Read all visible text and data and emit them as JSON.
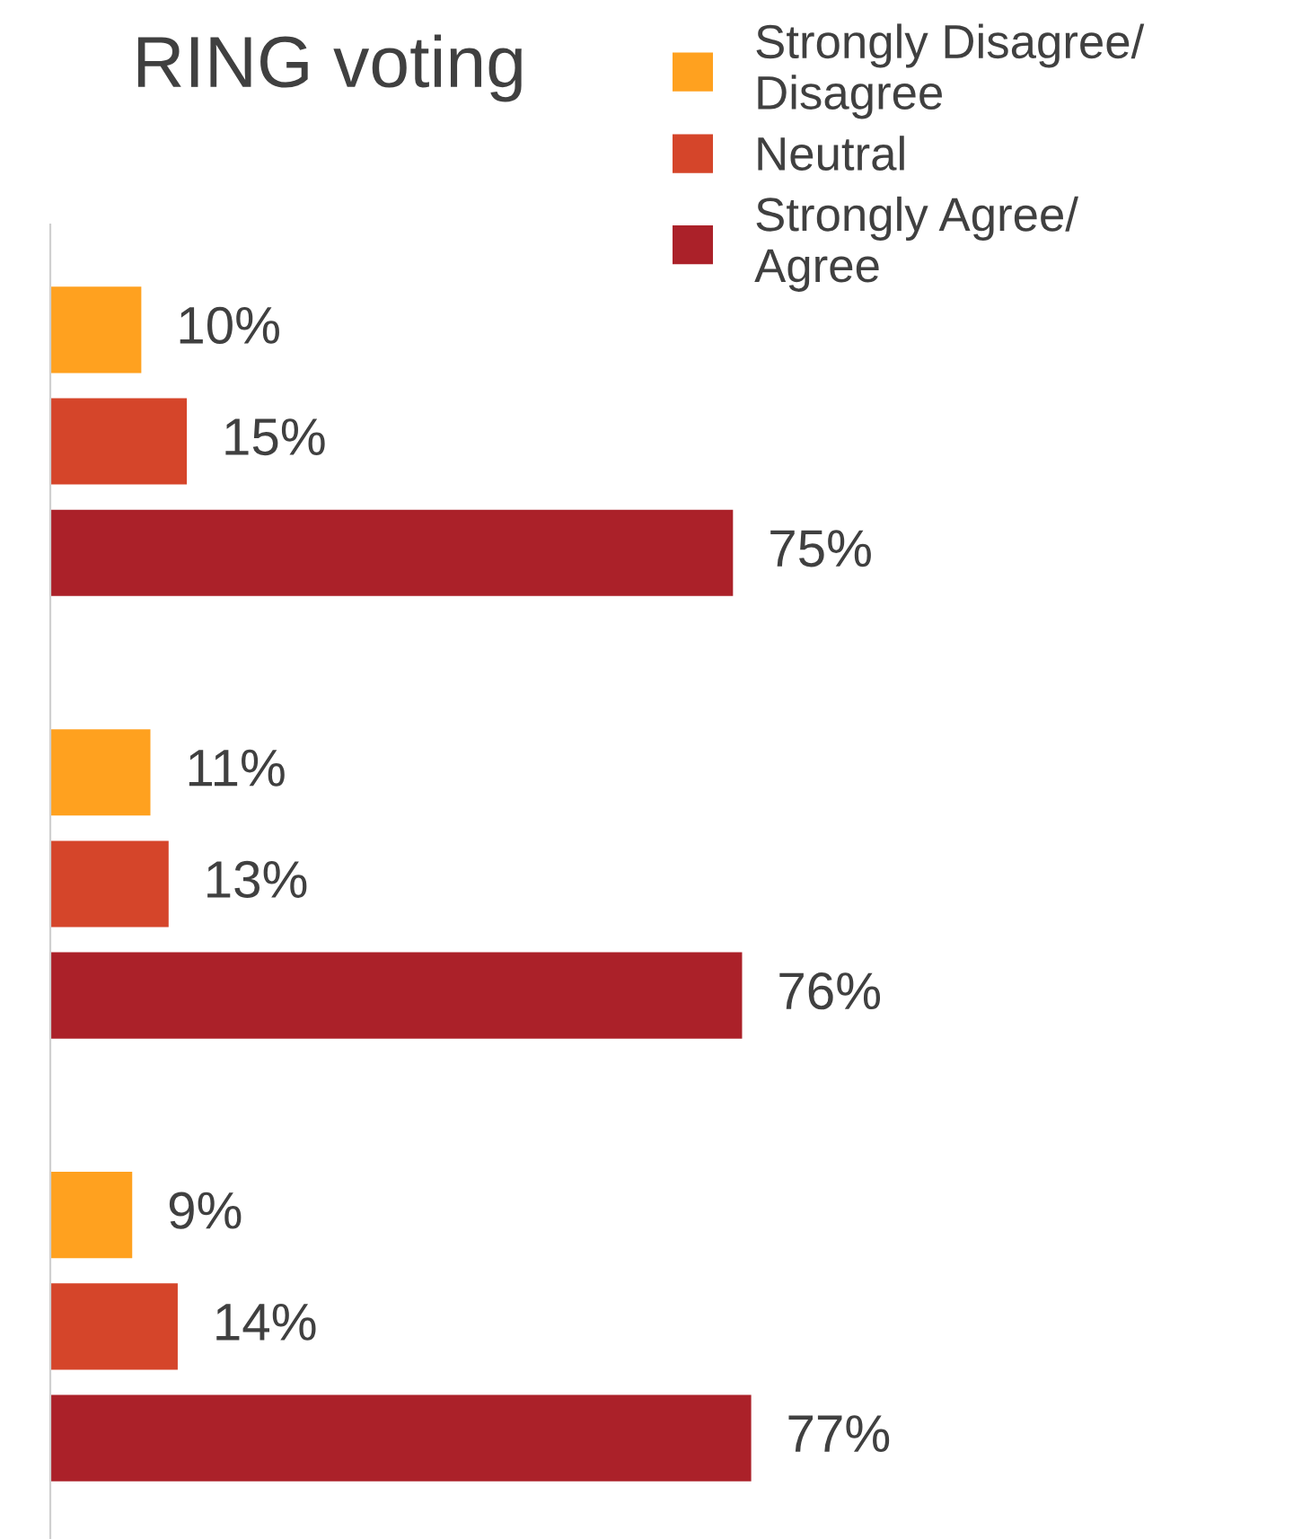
{
  "chart_data": {
    "type": "bar",
    "orientation": "horizontal",
    "title": "RING voting",
    "categories": [
      null,
      null,
      null
    ],
    "series": [
      {
        "name": "Strongly Disagree/\nDisagree",
        "color": "#ffa11f",
        "values": [
          10,
          11,
          9
        ],
        "value_labels": [
          "10%",
          "11%",
          "9%"
        ]
      },
      {
        "name": "Neutral",
        "color": "#d5452a",
        "values": [
          15,
          13,
          14
        ],
        "value_labels": [
          "15%",
          "13%",
          "14%"
        ]
      },
      {
        "name": "Strongly Agree/\nAgree",
        "color": "#ab2129",
        "values": [
          75,
          76,
          77
        ],
        "value_labels": [
          "75%",
          "76%",
          "77%"
        ]
      }
    ],
    "legend": "top right",
    "grid": false
  }
}
